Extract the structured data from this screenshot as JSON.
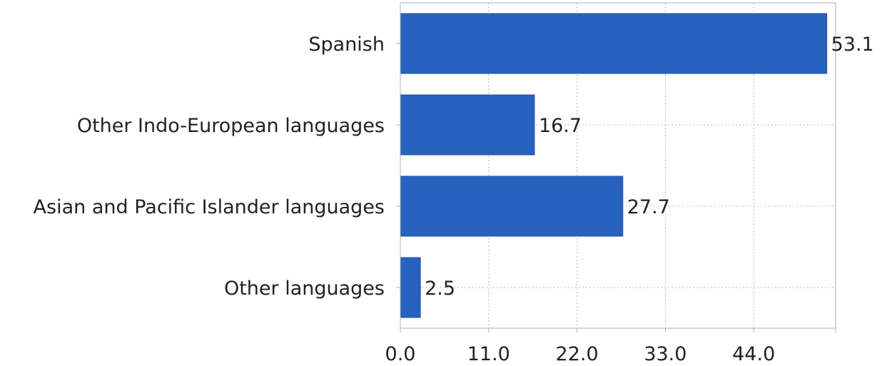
{
  "chart_data": {
    "type": "bar",
    "orientation": "horizontal",
    "categories": [
      "Spanish",
      "Other Indo-European languages",
      "Asian and Pacific Islander languages",
      "Other languages"
    ],
    "values": [
      53.1,
      16.7,
      27.7,
      2.5
    ],
    "value_labels": [
      "53.1",
      "16.7",
      "27.7",
      "2.5"
    ],
    "xlim": [
      0,
      54.2
    ],
    "x_ticks": [
      0,
      11,
      22,
      33,
      44
    ],
    "x_tick_labels": [
      "0.0",
      "11.0",
      "22.0",
      "33.0",
      "44.0"
    ],
    "grid": true,
    "legend": "none",
    "colors": {
      "bar": "#2762c0",
      "bar_stroke": "#1f4f9c",
      "grid": "#b8b8b8",
      "axis": "#b0b0b0",
      "text": "#222222"
    }
  }
}
